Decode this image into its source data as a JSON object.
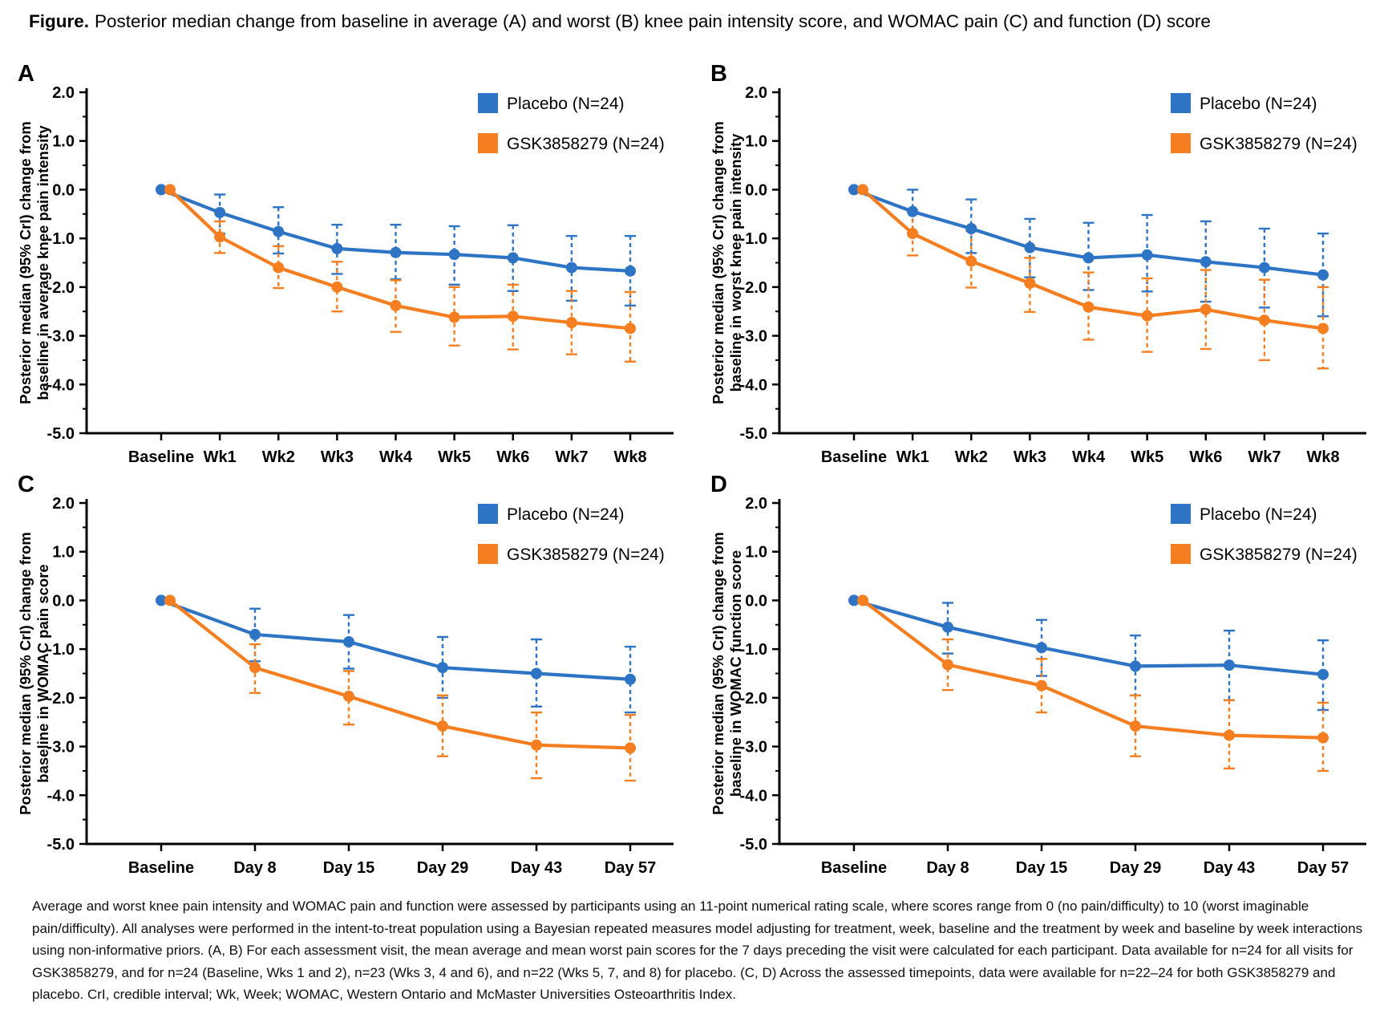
{
  "title": {
    "prefix": "Figure.",
    "text": "Posterior median change from baseline in average (A) and worst (B) knee pain intensity score, and WOMAC pain (C) and function (D) score"
  },
  "colors": {
    "placebo": "#2E74C4",
    "gsk": "#F57E20",
    "axis": "#000000"
  },
  "chart_data": [
    {
      "type": "line",
      "panel_label": "A",
      "ylabel_lines": [
        "Posterior median (95% CrI) change from",
        "baseline in average knee pain intensity"
      ],
      "categories": [
        "Baseline",
        "Wk1",
        "Wk2",
        "Wk3",
        "Wk4",
        "Wk5",
        "Wk6",
        "Wk7",
        "Wk8"
      ],
      "ylim": [
        -5.0,
        2.0
      ],
      "yticks": [
        2.0,
        1.0,
        0.0,
        -1.0,
        -2.0,
        -3.0,
        -4.0,
        -5.0
      ],
      "legend_position": "top-right",
      "series": [
        {
          "name": "Placebo (N=24)",
          "color_key": "placebo",
          "values": [
            0.0,
            -0.47,
            -0.86,
            -1.21,
            -1.29,
            -1.33,
            -1.4,
            -1.6,
            -1.67
          ],
          "ci_upper": [
            null,
            -0.1,
            -0.36,
            -0.72,
            -0.72,
            -0.75,
            -0.73,
            -0.95,
            -0.95
          ],
          "ci_lower": [
            null,
            -0.9,
            -1.31,
            -1.73,
            -1.84,
            -1.95,
            -2.08,
            -2.28,
            -2.38
          ]
        },
        {
          "name": "GSK3858279 (N=24)",
          "color_key": "gsk",
          "values": [
            0.0,
            -0.97,
            -1.6,
            -2.0,
            -2.38,
            -2.62,
            -2.6,
            -2.73,
            -2.85
          ],
          "ci_upper": [
            null,
            -0.65,
            -1.16,
            -1.48,
            -1.86,
            -2.0,
            -1.95,
            -2.08,
            -2.1
          ],
          "ci_lower": [
            null,
            -1.3,
            -2.02,
            -2.5,
            -2.92,
            -3.2,
            -3.28,
            -3.38,
            -3.53
          ]
        }
      ]
    },
    {
      "type": "line",
      "panel_label": "B",
      "ylabel_lines": [
        "Posterior median (95% CrI) change from",
        "baseline in worst knee pain intensity"
      ],
      "categories": [
        "Baseline",
        "Wk1",
        "Wk2",
        "Wk3",
        "Wk4",
        "Wk5",
        "Wk6",
        "Wk7",
        "Wk8"
      ],
      "ylim": [
        -5.0,
        2.0
      ],
      "yticks": [
        2.0,
        1.0,
        0.0,
        -1.0,
        -2.0,
        -3.0,
        -4.0,
        -5.0
      ],
      "legend_position": "top-right",
      "series": [
        {
          "name": "Placebo (N=24)",
          "color_key": "placebo",
          "values": [
            0.0,
            -0.45,
            -0.8,
            -1.19,
            -1.4,
            -1.34,
            -1.48,
            -1.6,
            -1.75
          ],
          "ci_upper": [
            null,
            0.0,
            -0.2,
            -0.6,
            -0.68,
            -0.52,
            -0.65,
            -0.8,
            -0.9
          ],
          "ci_lower": [
            null,
            -0.9,
            -1.3,
            -1.8,
            -2.06,
            -2.09,
            -2.3,
            -2.42,
            -2.6
          ]
        },
        {
          "name": "GSK3858279 (N=24)",
          "color_key": "gsk",
          "values": [
            0.0,
            -0.9,
            -1.47,
            -1.92,
            -2.41,
            -2.59,
            -2.46,
            -2.68,
            -2.85
          ],
          "ci_upper": [
            null,
            -0.45,
            -0.85,
            -1.4,
            -1.7,
            -1.82,
            -1.65,
            -1.85,
            -2.0
          ],
          "ci_lower": [
            null,
            -1.35,
            -2.01,
            -2.51,
            -3.08,
            -3.33,
            -3.27,
            -3.5,
            -3.67
          ]
        }
      ]
    },
    {
      "type": "line",
      "panel_label": "C",
      "ylabel_lines": [
        "Posterior median (95% CrI) change from",
        "baseline in WOMAC pain score"
      ],
      "categories": [
        "Baseline",
        "Day 8",
        "Day 15",
        "Day 29",
        "Day 43",
        "Day 57"
      ],
      "ylim": [
        -5.0,
        2.0
      ],
      "yticks": [
        2.0,
        1.0,
        0.0,
        -1.0,
        -2.0,
        -3.0,
        -4.0,
        -5.0
      ],
      "legend_position": "top-right",
      "series": [
        {
          "name": "Placebo (N=24)",
          "color_key": "placebo",
          "values": [
            0.0,
            -0.7,
            -0.85,
            -1.38,
            -1.5,
            -1.62
          ],
          "ci_upper": [
            null,
            -0.17,
            -0.3,
            -0.75,
            -0.8,
            -0.95
          ],
          "ci_lower": [
            null,
            -1.25,
            -1.4,
            -2.0,
            -2.18,
            -2.3
          ]
        },
        {
          "name": "GSK3858279 (N=24)",
          "color_key": "gsk",
          "values": [
            0.0,
            -1.38,
            -1.97,
            -2.58,
            -2.97,
            -3.03
          ],
          "ci_upper": [
            null,
            -0.9,
            -1.45,
            -1.95,
            -2.3,
            -2.35
          ],
          "ci_lower": [
            null,
            -1.9,
            -2.55,
            -3.2,
            -3.65,
            -3.7
          ]
        }
      ]
    },
    {
      "type": "line",
      "panel_label": "D",
      "ylabel_lines": [
        "Posterior median (95% CrI) change from",
        "baseline in WOMAC function score"
      ],
      "categories": [
        "Baseline",
        "Day 8",
        "Day 15",
        "Day 29",
        "Day 43",
        "Day 57"
      ],
      "ylim": [
        -5.0,
        2.0
      ],
      "yticks": [
        2.0,
        1.0,
        0.0,
        -1.0,
        -2.0,
        -3.0,
        -4.0,
        -5.0
      ],
      "legend_position": "top-right",
      "series": [
        {
          "name": "Placebo (N=24)",
          "color_key": "placebo",
          "values": [
            0.0,
            -0.55,
            -0.97,
            -1.35,
            -1.33,
            -1.52
          ],
          "ci_upper": [
            null,
            -0.05,
            -0.4,
            -0.72,
            -0.62,
            -0.82
          ],
          "ci_lower": [
            null,
            -1.09,
            -1.55,
            -1.95,
            -2.05,
            -2.25
          ]
        },
        {
          "name": "GSK3858279 (N=24)",
          "color_key": "gsk",
          "values": [
            0.0,
            -1.32,
            -1.75,
            -2.58,
            -2.77,
            -2.82
          ],
          "ci_upper": [
            null,
            -0.8,
            -1.2,
            -1.95,
            -2.05,
            -2.1
          ],
          "ci_lower": [
            null,
            -1.84,
            -2.3,
            -3.2,
            -3.45,
            -3.5
          ]
        }
      ]
    }
  ],
  "footnote": "Average and worst knee pain intensity and WOMAC pain and function were assessed by participants using an 11-point numerical rating scale, where scores range from 0 (no pain/difficulty) to 10 (worst imaginable pain/difficulty). All analyses were performed in the intent-to-treat population using a Bayesian repeated measures model adjusting for treatment, week, baseline and the treatment by week and baseline by week interactions using non-informative priors. (A, B) For each assessment visit, the mean average and mean worst pain scores for the 7 days preceding the visit were calculated for each participant. Data available for n=24 for all visits for GSK3858279, and for n=24 (Baseline, Wks 1 and 2), n=23 (Wks 3, 4 and 6), and n=22 (Wks 5, 7, and 8) for placebo. (C, D) Across the assessed timepoints, data were available for n=22–24 for both GSK3858279 and placebo. CrI, credible interval; Wk, Week; WOMAC, Western Ontario and McMaster Universities Osteoarthritis Index."
}
